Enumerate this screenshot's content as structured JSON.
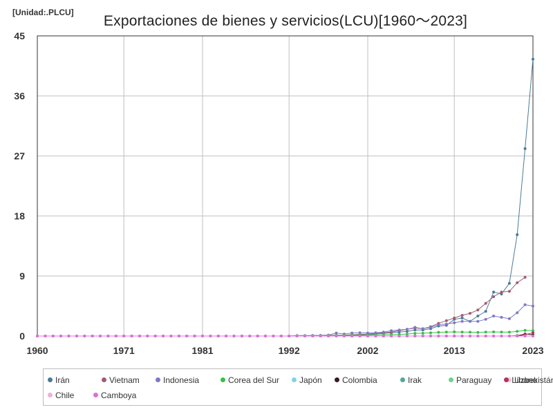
{
  "unit_label": "[Unidad:.PLCU]",
  "chart_data": {
    "type": "line",
    "title": "Exportaciones de bienes y servicios(LCU)[1960〜2023]",
    "xlabel": "",
    "ylabel": "",
    "xlim": [
      1960,
      2023
    ],
    "ylim": [
      0,
      45
    ],
    "x_ticks": [
      1960,
      1971,
      1981,
      1992,
      2002,
      2013,
      2023
    ],
    "y_ticks": [
      0,
      9,
      18,
      27,
      36,
      45
    ],
    "grid": true,
    "legend_position": "bottom",
    "series": [
      {
        "name": "Irán",
        "color": "#4a7a96",
        "zero_from": 1960,
        "zero_to": 1992,
        "points": [
          [
            1993,
            0.02
          ],
          [
            1994,
            0.03
          ],
          [
            1995,
            0.04
          ],
          [
            1996,
            0.05
          ],
          [
            1997,
            0.06
          ],
          [
            1998,
            0.07
          ],
          [
            1999,
            0.1
          ],
          [
            2000,
            0.15
          ],
          [
            2001,
            0.18
          ],
          [
            2002,
            0.2
          ],
          [
            2003,
            0.3
          ],
          [
            2004,
            0.4
          ],
          [
            2005,
            0.5
          ],
          [
            2006,
            0.6
          ],
          [
            2007,
            0.7
          ],
          [
            2008,
            0.9
          ],
          [
            2009,
            0.9
          ],
          [
            2010,
            1.1
          ],
          [
            2011,
            1.5
          ],
          [
            2012,
            1.6
          ],
          [
            2013,
            2.5
          ],
          [
            2014,
            2.7
          ],
          [
            2015,
            2.2
          ],
          [
            2016,
            3.0
          ],
          [
            2017,
            3.7
          ],
          [
            2018,
            6.6
          ],
          [
            2019,
            6.3
          ],
          [
            2020,
            7.9
          ],
          [
            2021,
            15.2
          ],
          [
            2022,
            28.1
          ],
          [
            2023,
            41.5
          ]
        ]
      },
      {
        "name": "Vietnam",
        "color": "#a05c6e",
        "zero_from": 1960,
        "zero_to": 1992,
        "points": [
          [
            1993,
            0.02
          ],
          [
            1994,
            0.04
          ],
          [
            1995,
            0.06
          ],
          [
            1996,
            0.08
          ],
          [
            1997,
            0.1
          ],
          [
            1998,
            0.12
          ],
          [
            1999,
            0.15
          ],
          [
            2000,
            0.2
          ],
          [
            2001,
            0.25
          ],
          [
            2002,
            0.3
          ],
          [
            2003,
            0.4
          ],
          [
            2004,
            0.5
          ],
          [
            2005,
            0.6
          ],
          [
            2006,
            0.8
          ],
          [
            2007,
            1.0
          ],
          [
            2008,
            1.2
          ],
          [
            2009,
            1.1
          ],
          [
            2010,
            1.4
          ],
          [
            2011,
            1.9
          ],
          [
            2012,
            2.3
          ],
          [
            2013,
            2.7
          ],
          [
            2014,
            3.1
          ],
          [
            2015,
            3.4
          ],
          [
            2016,
            3.9
          ],
          [
            2017,
            4.9
          ],
          [
            2018,
            5.9
          ],
          [
            2019,
            6.6
          ],
          [
            2020,
            6.7
          ],
          [
            2021,
            8.0
          ],
          [
            2022,
            8.8
          ]
        ]
      },
      {
        "name": "Indonesia",
        "color": "#7e78c8",
        "zero_from": 1960,
        "zero_to": 1992,
        "points": [
          [
            1993,
            0.07
          ],
          [
            1994,
            0.08
          ],
          [
            1995,
            0.09
          ],
          [
            1996,
            0.1
          ],
          [
            1997,
            0.15
          ],
          [
            1998,
            0.45
          ],
          [
            1999,
            0.3
          ],
          [
            2000,
            0.45
          ],
          [
            2001,
            0.5
          ],
          [
            2002,
            0.45
          ],
          [
            2003,
            0.5
          ],
          [
            2004,
            0.6
          ],
          [
            2005,
            0.8
          ],
          [
            2006,
            0.9
          ],
          [
            2007,
            1.0
          ],
          [
            2008,
            1.3
          ],
          [
            2009,
            1.1
          ],
          [
            2010,
            1.3
          ],
          [
            2011,
            1.7
          ],
          [
            2012,
            1.8
          ],
          [
            2013,
            2.0
          ],
          [
            2014,
            2.2
          ],
          [
            2015,
            2.2
          ],
          [
            2016,
            2.2
          ],
          [
            2017,
            2.5
          ],
          [
            2018,
            3.0
          ],
          [
            2019,
            2.8
          ],
          [
            2020,
            2.6
          ],
          [
            2021,
            3.5
          ],
          [
            2022,
            4.7
          ],
          [
            2023,
            4.5
          ]
        ]
      },
      {
        "name": "Corea del Sur",
        "color": "#35c046",
        "zero_from": 1960,
        "zero_to": 1992,
        "points": [
          [
            1993,
            0.02
          ],
          [
            1994,
            0.03
          ],
          [
            1995,
            0.04
          ],
          [
            1996,
            0.05
          ],
          [
            1997,
            0.06
          ],
          [
            1998,
            0.08
          ],
          [
            1999,
            0.09
          ],
          [
            2000,
            0.1
          ],
          [
            2001,
            0.1
          ],
          [
            2002,
            0.12
          ],
          [
            2003,
            0.15
          ],
          [
            2004,
            0.2
          ],
          [
            2005,
            0.22
          ],
          [
            2006,
            0.25
          ],
          [
            2007,
            0.3
          ],
          [
            2008,
            0.4
          ],
          [
            2009,
            0.42
          ],
          [
            2010,
            0.48
          ],
          [
            2011,
            0.56
          ],
          [
            2012,
            0.6
          ],
          [
            2013,
            0.62
          ],
          [
            2014,
            0.6
          ],
          [
            2015,
            0.58
          ],
          [
            2016,
            0.55
          ],
          [
            2017,
            0.6
          ],
          [
            2018,
            0.62
          ],
          [
            2019,
            0.6
          ],
          [
            2020,
            0.58
          ],
          [
            2021,
            0.7
          ],
          [
            2022,
            0.85
          ],
          [
            2023,
            0.8
          ]
        ]
      },
      {
        "name": "Japón",
        "color": "#7fd2ee",
        "zero_from": 1960,
        "zero_to": 2023,
        "points": []
      },
      {
        "name": "Colombia",
        "color": "#3a1a24",
        "zero_from": 1960,
        "zero_to": 2020,
        "points": [
          [
            2021,
            0.05
          ],
          [
            2022,
            0.3
          ],
          [
            2023,
            0.2
          ]
        ]
      },
      {
        "name": "Irak",
        "color": "#52a894",
        "zero_from": 1960,
        "zero_to": 2023,
        "points": []
      },
      {
        "name": "Paraguay",
        "color": "#6fd28c",
        "zero_from": 1960,
        "zero_to": 2023,
        "points": []
      },
      {
        "name": "Uzbekistán",
        "color": "#f2c6d6",
        "zero_from": 1960,
        "zero_to": 2023,
        "points": []
      },
      {
        "name": "Líbano",
        "color": "#b8325a",
        "zero_from": 1960,
        "zero_to": 2021,
        "points": [
          [
            2022,
            0.2
          ],
          [
            2023,
            0.5
          ]
        ]
      },
      {
        "name": "Chile",
        "color": "#f0aedd",
        "zero_from": 1960,
        "zero_to": 2023,
        "points": []
      },
      {
        "name": "Camboya",
        "color": "#de6fd8",
        "zero_from": 1960,
        "zero_to": 2023,
        "points": []
      }
    ]
  }
}
